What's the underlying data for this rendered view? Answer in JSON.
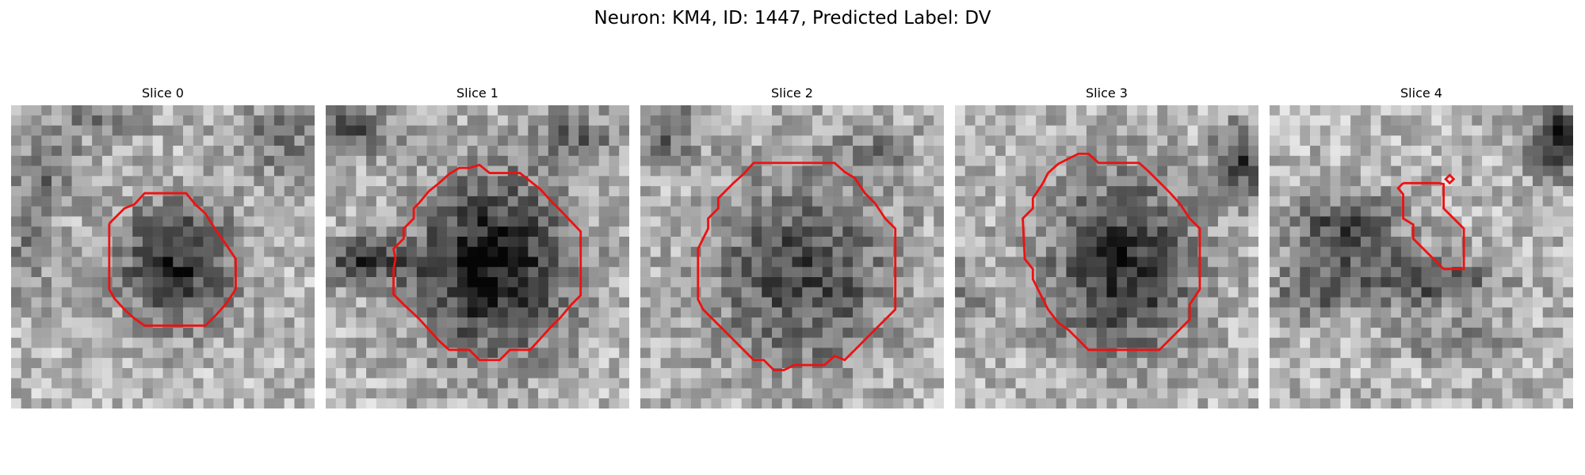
{
  "figure": {
    "title": "Neuron: KM4, ID: 1447, Predicted Label: DV"
  },
  "panels": [
    {
      "title": "Slice 0",
      "outline_color": "#ee1111"
    },
    {
      "title": "Slice 1",
      "outline_color": "#ee1111"
    },
    {
      "title": "Slice 2",
      "outline_color": "#ee1111"
    },
    {
      "title": "Slice 3",
      "outline_color": "#ee1111"
    },
    {
      "title": "Slice 4",
      "outline_color": "#ee1111"
    }
  ]
}
